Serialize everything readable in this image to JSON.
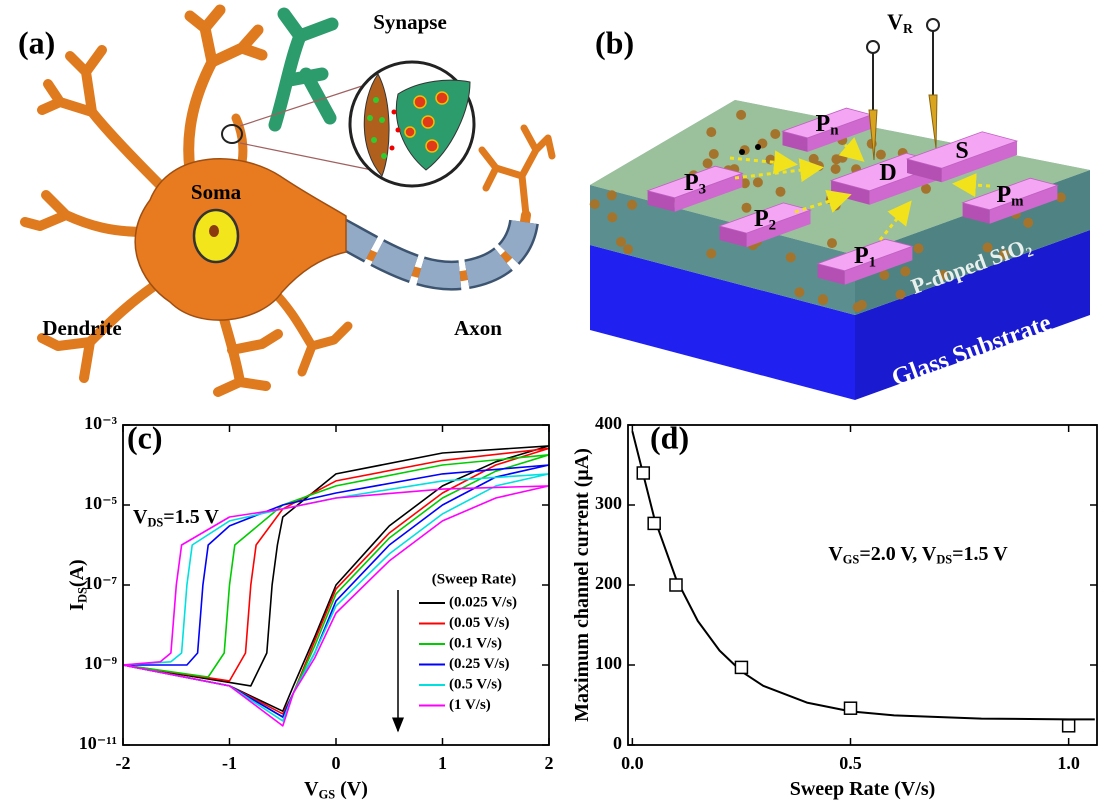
{
  "panel_a": {
    "label": "(a)",
    "synapse": "Synapse",
    "soma": "Soma",
    "dendrite": "Dendrite",
    "axon": "Axon"
  },
  "panel_b": {
    "label": "(b)",
    "probe": [
      "V",
      "R"
    ],
    "pads": [
      [
        "P",
        "3"
      ],
      [
        "P",
        "n"
      ],
      [
        "D"
      ],
      [
        "S"
      ],
      [
        "P",
        "2"
      ],
      [
        "P",
        "1"
      ],
      [
        "P",
        "m"
      ]
    ],
    "layers": [
      [
        "P-doped SiO",
        "2"
      ],
      [
        "Glass Substrate"
      ]
    ]
  },
  "chart_data": [
    {
      "type": "line",
      "panel_label": "(c)",
      "yscale": "log",
      "xlim": [
        -2,
        2
      ],
      "xticks": [
        -2,
        -1,
        0,
        1,
        2
      ],
      "ylim": [
        1e-11,
        0.001
      ],
      "yticks": [
        {
          "value": 0.001,
          "label": "10⁻³"
        },
        {
          "value": 1e-05,
          "label": "10⁻⁵"
        },
        {
          "value": 1e-07,
          "label": "10⁻⁷"
        },
        {
          "value": 1e-09,
          "label": "10⁻⁹"
        },
        {
          "value": 1e-11,
          "label": "10⁻¹¹"
        }
      ],
      "xlabel": [
        "V",
        "GS",
        " (V)"
      ],
      "ylabel": [
        "I",
        "DS",
        "(A)"
      ],
      "annotation": [
        "V",
        "DS",
        "=1.5 V"
      ],
      "legend_title": "(Sweep Rate)",
      "legend": "lower right",
      "series": [
        {
          "name": "(0.025 V/s)",
          "color": "#000000",
          "x": [
            -2,
            -1,
            -0.5,
            -0.4,
            -0.2,
            0,
            0.5,
            1,
            1.5,
            2,
            1,
            0,
            -0.5,
            -0.55,
            -0.6,
            -0.65,
            -0.8,
            -2
          ],
          "values": [
            1e-09,
            3e-10,
            7e-11,
            3e-10,
            5e-09,
            1e-07,
            3e-06,
            3e-05,
            0.00012,
            0.0003,
            0.0002,
            6e-05,
            5e-06,
            1e-06,
            1e-07,
            2e-09,
            3e-10,
            1e-09
          ]
        },
        {
          "name": "(0.05 V/s)",
          "color": "#ff0000",
          "x": [
            -2,
            -1,
            -0.5,
            -0.4,
            -0.2,
            0,
            0.5,
            1,
            1.5,
            2,
            1,
            0,
            -0.5,
            -0.75,
            -0.8,
            -0.85,
            -1,
            -2
          ],
          "values": [
            1e-09,
            3e-10,
            6e-11,
            2e-10,
            4e-09,
            8e-08,
            2e-06,
            2e-05,
            0.0001,
            0.00026,
            0.00013,
            4e-05,
            8e-06,
            1e-06,
            1e-07,
            2e-09,
            4e-10,
            1e-09
          ]
        },
        {
          "name": "(0.1 V/s)",
          "color": "#00cc00",
          "x": [
            -2,
            -1,
            -0.5,
            -0.4,
            -0.2,
            0,
            0.5,
            1,
            1.5,
            2,
            1,
            0,
            -0.5,
            -0.95,
            -1,
            -1.05,
            -1.2,
            -2
          ],
          "values": [
            1e-09,
            3e-10,
            5e-11,
            2e-10,
            3e-09,
            6e-08,
            1.5e-06,
            1.5e-05,
            7e-05,
            0.00018,
            0.0001,
            3e-05,
            1e-05,
            1e-06,
            1e-07,
            2e-09,
            5e-10,
            1e-09
          ]
        },
        {
          "name": "(0.25 V/s)",
          "color": "#0000ff",
          "x": [
            -2,
            -1,
            -0.5,
            -0.4,
            -0.2,
            0,
            0.5,
            1,
            1.5,
            2,
            1,
            0,
            -0.5,
            -1,
            -1.2,
            -1.25,
            -1.3,
            -1.4,
            -2
          ],
          "values": [
            1e-09,
            3e-10,
            5e-11,
            2e-10,
            2e-09,
            4e-08,
            1e-06,
            1e-05,
            5e-05,
            0.0001,
            6e-05,
            2e-05,
            1e-05,
            3e-06,
            1e-06,
            1e-07,
            2e-09,
            1e-09,
            1e-09
          ]
        },
        {
          "name": "(0.5 V/s)",
          "color": "#00e0e0",
          "x": [
            -2,
            -1,
            -0.5,
            -0.4,
            -0.2,
            0,
            0.5,
            1,
            1.5,
            2,
            1,
            0,
            -0.5,
            -1,
            -1.35,
            -1.4,
            -1.45,
            -1.55,
            -2
          ],
          "values": [
            1e-09,
            3e-10,
            4e-11,
            2e-10,
            2e-09,
            3e-08,
            6e-07,
            6e-06,
            3e-05,
            6e-05,
            4e-05,
            1.5e-05,
            8e-06,
            4e-06,
            1e-06,
            1e-07,
            2e-09,
            1.2e-09,
            1e-09
          ]
        },
        {
          "name": "(1 V/s)",
          "color": "#ff00ff",
          "x": [
            -2,
            -1,
            -0.5,
            -0.4,
            -0.2,
            0,
            0.5,
            1,
            1.5,
            2,
            1,
            0,
            -0.5,
            -1,
            -1.45,
            -1.5,
            -1.55,
            -1.65,
            -2
          ],
          "values": [
            1e-09,
            3e-10,
            3e-11,
            2e-10,
            1.5e-09,
            2e-08,
            4e-07,
            4e-06,
            1.5e-05,
            3e-05,
            2.5e-05,
            1.5e-05,
            8e-06,
            5e-06,
            1e-06,
            1e-07,
            2e-09,
            1.2e-09,
            1e-09
          ]
        }
      ]
    },
    {
      "type": "scatter",
      "panel_label": "(d)",
      "xlim": [
        -0.01,
        1.065
      ],
      "xticks": [
        {
          "value": 0,
          "label": "0.0"
        },
        0.5,
        {
          "value": 1,
          "label": "1.0"
        }
      ],
      "ylim": [
        0,
        400
      ],
      "yticks": [
        0,
        100,
        200,
        300,
        400
      ],
      "xlabel": [
        "Sweep Rate (V/s)"
      ],
      "ylabel": [
        "Maximum channel current (μA)"
      ],
      "annotation": [
        "V",
        "GS",
        "=2.0 V, V",
        "DS",
        "=1.5 V"
      ],
      "series": [
        {
          "marker": "none",
          "color": "#000000",
          "x": [
            0,
            0.05,
            0.1,
            0.15,
            0.2,
            0.25,
            0.3,
            0.4,
            0.5,
            0.6,
            0.8,
            1.0,
            1.06
          ],
          "values": [
            392,
            284,
            208,
            155,
            118,
            92,
            74,
            53,
            42,
            37,
            33,
            32,
            32
          ]
        },
        {
          "marker": "square",
          "color": "#000000",
          "x": [
            0.025,
            0.05,
            0.1,
            0.25,
            0.5,
            1.0
          ],
          "values": [
            340,
            277,
            200,
            97,
            46,
            24
          ]
        }
      ]
    }
  ]
}
